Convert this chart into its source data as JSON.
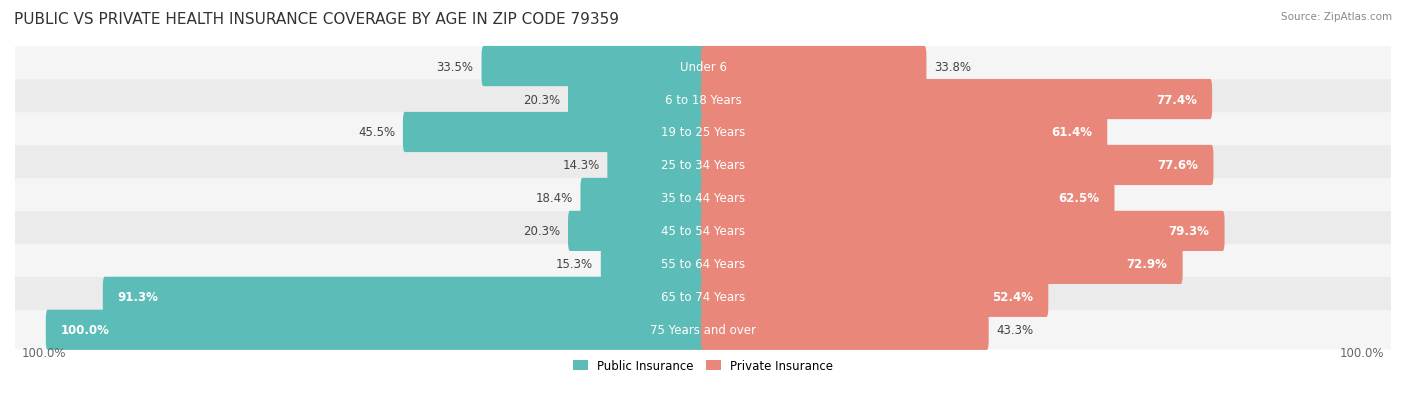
{
  "title": "PUBLIC VS PRIVATE HEALTH INSURANCE COVERAGE BY AGE IN ZIP CODE 79359",
  "source": "Source: ZipAtlas.com",
  "categories": [
    "Under 6",
    "6 to 18 Years",
    "19 to 25 Years",
    "25 to 34 Years",
    "35 to 44 Years",
    "45 to 54 Years",
    "55 to 64 Years",
    "65 to 74 Years",
    "75 Years and over"
  ],
  "public_values": [
    33.5,
    20.3,
    45.5,
    14.3,
    18.4,
    20.3,
    15.3,
    91.3,
    100.0
  ],
  "private_values": [
    33.8,
    77.4,
    61.4,
    77.6,
    62.5,
    79.3,
    72.9,
    52.4,
    43.3
  ],
  "public_color": "#5bbcb8",
  "private_color": "#e8877a",
  "public_label": "Public Insurance",
  "private_label": "Private Insurance",
  "max_value": 100.0,
  "bar_height": 0.62,
  "title_fontsize": 11,
  "label_fontsize": 8.5,
  "value_fontsize": 8.5,
  "category_fontsize": 8.5,
  "background_color": "#ffffff",
  "row_colors": [
    "#f5f5f5",
    "#ebebeb"
  ]
}
